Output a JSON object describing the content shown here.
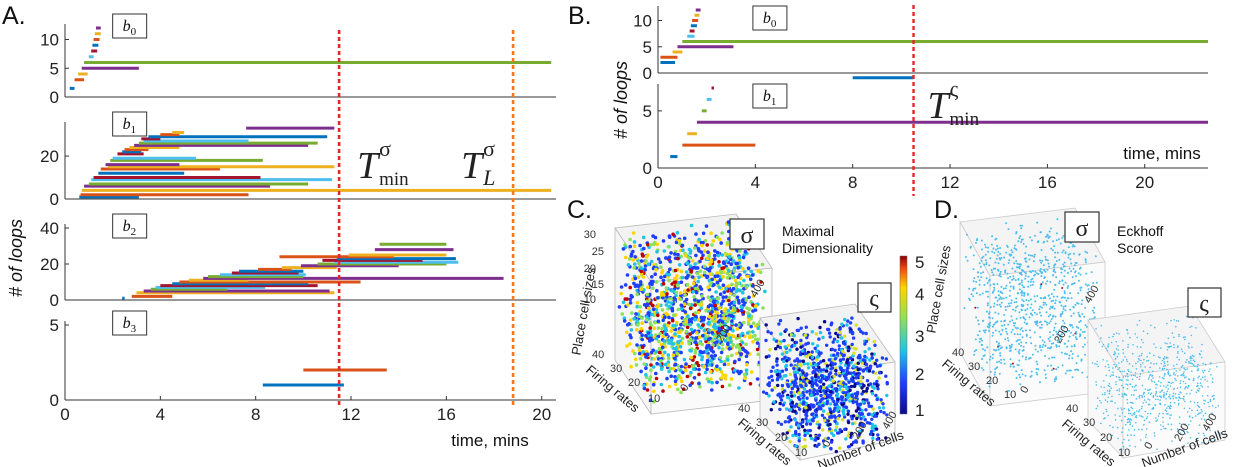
{
  "panels": {
    "A": {
      "letter": "A.",
      "xlabel": "time, mins",
      "ylabel": "# of loops",
      "x_ticks": [
        "0",
        "4",
        "8",
        "12",
        "16",
        "20"
      ],
      "xlim": [
        0,
        20.6
      ],
      "markers": {
        "t_min": {
          "x": 11.5,
          "symbol": "T",
          "sup": "σ",
          "sub": "min",
          "color": "#e8252b"
        },
        "t_L": {
          "x": 18.8,
          "symbol": "T",
          "sup": "σ",
          "sub": "L",
          "color": "#f07a22"
        }
      },
      "subplots": [
        {
          "id": "b0",
          "label": "b",
          "sub": "0",
          "ylim": [
            0,
            12
          ],
          "ticks": [
            0,
            5,
            10
          ],
          "bars": [
            [
              0.2,
              0.4,
              1.5
            ],
            [
              0.4,
              0.8,
              3
            ],
            [
              0.55,
              0.95,
              4
            ],
            [
              0.7,
              3.1,
              5
            ],
            [
              0.8,
              20.4,
              6
            ],
            [
              1.0,
              1.2,
              7
            ],
            [
              1.1,
              1.35,
              8
            ],
            [
              1.15,
              1.4,
              9
            ],
            [
              1.2,
              1.45,
              10
            ],
            [
              1.25,
              1.5,
              11
            ],
            [
              1.3,
              1.5,
              12
            ]
          ]
        },
        {
          "id": "b1",
          "label": "b",
          "sub": "1",
          "ylim": [
            0,
            34
          ],
          "ticks": [
            0,
            20
          ],
          "bars": [
            [
              0.6,
              3.1,
              1
            ],
            [
              0.65,
              7.7,
              2
            ],
            [
              0.7,
              20.4,
              4
            ],
            [
              0.8,
              8.6,
              6
            ],
            [
              1.0,
              10.2,
              7
            ],
            [
              1.1,
              11.2,
              9
            ],
            [
              1.2,
              8.2,
              10
            ],
            [
              1.4,
              5.0,
              12
            ],
            [
              1.5,
              6.5,
              14
            ],
            [
              1.8,
              11.3,
              15
            ],
            [
              1.7,
              4.8,
              16
            ],
            [
              1.9,
              8.3,
              18
            ],
            [
              2.0,
              5.5,
              19
            ],
            [
              2.2,
              3.3,
              21
            ],
            [
              2.4,
              3.2,
              22
            ],
            [
              2.5,
              3.5,
              23
            ],
            [
              2.7,
              4.8,
              24
            ],
            [
              2.9,
              10.2,
              25
            ],
            [
              3.1,
              10.6,
              26
            ],
            [
              3.3,
              7.7,
              27
            ],
            [
              3.2,
              4.0,
              28
            ],
            [
              3.5,
              11.0,
              29
            ],
            [
              4.0,
              4.8,
              30
            ],
            [
              4.5,
              5.0,
              31
            ],
            [
              7.6,
              11.3,
              33
            ]
          ]
        },
        {
          "id": "b2",
          "label": "b",
          "sub": "2",
          "ylim": [
            0,
            40
          ],
          "ticks": [
            0,
            20,
            40
          ],
          "bars": [
            [
              2.4,
              2.5,
              1
            ],
            [
              2.8,
              4.5,
              2
            ],
            [
              3.0,
              11.3,
              4
            ],
            [
              3.3,
              11.1,
              5
            ],
            [
              3.6,
              6.8,
              6
            ],
            [
              3.8,
              8.4,
              7
            ],
            [
              4.0,
              10.6,
              8
            ],
            [
              4.5,
              10.2,
              9
            ],
            [
              4.8,
              12.4,
              10
            ],
            [
              5.2,
              7.7,
              11
            ],
            [
              5.8,
              18.4,
              12
            ],
            [
              6.0,
              10.0,
              13
            ],
            [
              6.5,
              10.1,
              14
            ],
            [
              7.0,
              9.8,
              15
            ],
            [
              7.3,
              10.0,
              16
            ],
            [
              8.1,
              9.5,
              17
            ],
            [
              9.1,
              11.4,
              18
            ],
            [
              9.9,
              14.0,
              19
            ],
            [
              10.6,
              16.0,
              20
            ],
            [
              11.3,
              16.5,
              21
            ],
            [
              10.8,
              15.0,
              22
            ],
            [
              11.4,
              16.4,
              23
            ],
            [
              9.0,
              13.8,
              24
            ],
            [
              11.9,
              16.0,
              25
            ],
            [
              13.0,
              16.3,
              28
            ],
            [
              13.2,
              16.0,
              31
            ]
          ]
        },
        {
          "id": "b3",
          "label": "b",
          "sub": "3",
          "ylim": [
            0,
            5
          ],
          "ticks": [
            0,
            5
          ],
          "bars": [
            [
              8.3,
              11.7,
              1
            ],
            [
              10.0,
              13.5,
              2
            ]
          ]
        }
      ]
    },
    "B": {
      "letter": "B.",
      "xlabel": "time, mins",
      "ylabel": "# of loops",
      "x_ticks": [
        "0",
        "4",
        "8",
        "12",
        "16",
        "20"
      ],
      "xlim": [
        0,
        22.6
      ],
      "marker": {
        "x": 10.5,
        "symbol": "T",
        "sup": "ς",
        "sub": "min",
        "color": "#e8252b"
      },
      "subplots": [
        {
          "id": "b0",
          "label": "b",
          "sub": "0",
          "ylim": [
            0,
            12
          ],
          "ticks": [
            0,
            5,
            10
          ],
          "bars": [
            [
              0.1,
              0.7,
              2
            ],
            [
              0.1,
              0.8,
              3
            ],
            [
              0.6,
              1.0,
              4
            ],
            [
              0.8,
              3.1,
              5
            ],
            [
              1.0,
              22.6,
              6
            ],
            [
              1.2,
              1.5,
              7
            ],
            [
              1.3,
              1.5,
              8
            ],
            [
              1.35,
              1.6,
              9
            ],
            [
              1.4,
              1.65,
              10
            ],
            [
              1.5,
              1.7,
              11
            ],
            [
              1.55,
              1.75,
              12
            ]
          ]
        },
        {
          "id": "b1",
          "label": "b",
          "sub": "1",
          "ylim": [
            0,
            7
          ],
          "ticks": [
            0,
            5
          ],
          "bars": [
            [
              0.5,
              0.8,
              1
            ],
            [
              1.0,
              4.0,
              2
            ],
            [
              1.2,
              1.6,
              3
            ],
            [
              1.6,
              22.6,
              4
            ],
            [
              1.8,
              2.0,
              5
            ],
            [
              2.0,
              2.2,
              6
            ],
            [
              2.2,
              2.3,
              7
            ],
            [
              8.0,
              10.5,
              7.9
            ]
          ]
        }
      ]
    },
    "C": {
      "letter": "C.",
      "title_line1": "Maximal",
      "title_line2": "Dimensionality",
      "sigma": "σ",
      "varsigma": "ς",
      "colorbar_ticks": [
        "5",
        "4",
        "3",
        "2",
        "1"
      ],
      "axis_labels": {
        "x": "Number of cells",
        "y": "Firing rates",
        "z": "Place cell sizes"
      },
      "z_ticks": [
        "10",
        "15",
        "20",
        "25",
        "30"
      ],
      "y_ticks": [
        "40",
        "30",
        "20",
        "10"
      ],
      "x_ticks": [
        "0",
        "200",
        "400"
      ]
    },
    "D": {
      "letter": "D.",
      "title_line1": "Eckhoff",
      "title_line2": "Score",
      "sigma": "σ",
      "varsigma": "ς",
      "axis_labels": {
        "x": "Number of cells",
        "y": "Firing rates",
        "z": "Place cell sizes"
      },
      "y_ticks": [
        "40",
        "30",
        "20",
        "10"
      ],
      "x_ticks": [
        "0",
        "200",
        "400"
      ]
    }
  },
  "colors": {
    "palette": [
      "#0072bd",
      "#d95319",
      "#edb120",
      "#7e2f8e",
      "#77ac30",
      "#4dbeee",
      "#a2142f"
    ],
    "axis": "#333333"
  }
}
